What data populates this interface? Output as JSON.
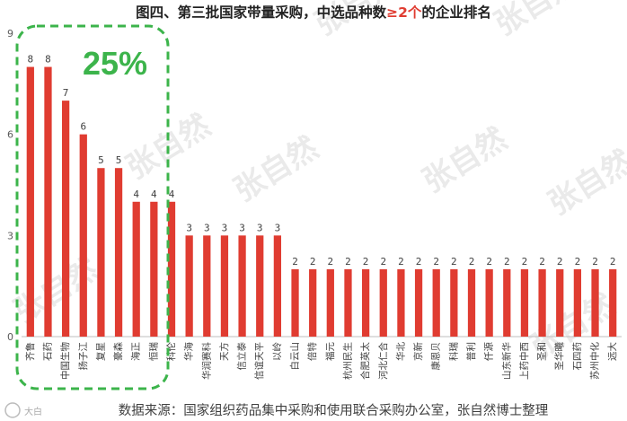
{
  "chart_data": {
    "type": "bar",
    "title_parts": [
      {
        "text": "图四、第三批国家带量采购，中选品种数",
        "color": "#222222"
      },
      {
        "text": "≥2个",
        "color": "#e03c31"
      },
      {
        "text": "的企业排名",
        "color": "#222222"
      }
    ],
    "categories": [
      "齐鲁",
      "石药",
      "中国生物",
      "扬子江",
      "复星",
      "豪森",
      "海正",
      "恒瑞",
      "科伦",
      "华海",
      "华润赛科",
      "天方",
      "信立泰",
      "信谊天平",
      "以岭",
      "白云山",
      "倍特",
      "福元",
      "杭州民生",
      "合肥英太",
      "河北仁合",
      "华北",
      "京新",
      "康恩贝",
      "科瑞",
      "普利",
      "仟源",
      "山东新华",
      "上药中西",
      "圣和",
      "圣华曦",
      "石四药",
      "苏州中化",
      "远大"
    ],
    "values": [
      8,
      8,
      7,
      6,
      5,
      5,
      4,
      4,
      4,
      3,
      3,
      3,
      3,
      3,
      3,
      2,
      2,
      2,
      2,
      2,
      2,
      2,
      2,
      2,
      2,
      2,
      2,
      2,
      2,
      2,
      2,
      2,
      2,
      2
    ],
    "y_ticks": [
      "0",
      "3",
      "6",
      "9"
    ],
    "ylim": [
      0,
      9
    ],
    "xlabel": "",
    "ylabel": "",
    "bar_color": "#e03c31",
    "annotation": {
      "text": "25%",
      "color": "#3cb44b"
    },
    "source_note": "数据来源：国家组织药品集中采购和使用联合采购办公室，张自然博士整理",
    "watermark": "张自然",
    "logo_text": "大白"
  }
}
